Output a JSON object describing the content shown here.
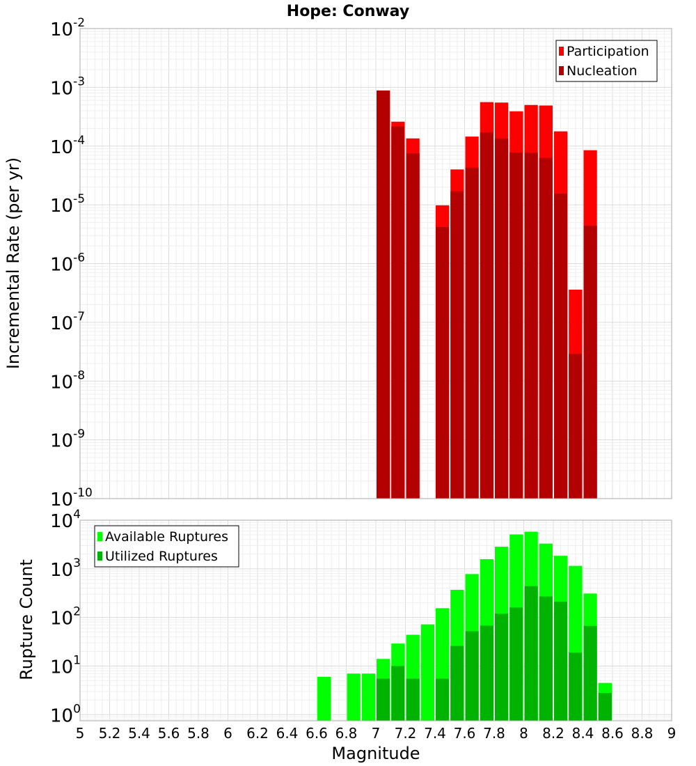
{
  "chart_data": [
    {
      "type": "bar",
      "title": "Hope: Conway",
      "ylabel": "Incremental Rate (per yr)",
      "xlabel": "",
      "xlim": [
        5,
        9
      ],
      "ylim": [
        1e-10,
        0.01
      ],
      "yscale": "log",
      "grid": true,
      "legend_position": "top-right",
      "yticks": [
        {
          "base": "10",
          "exp": "-10"
        },
        {
          "base": "10",
          "exp": "-9"
        },
        {
          "base": "10",
          "exp": "-8"
        },
        {
          "base": "10",
          "exp": "-7"
        },
        {
          "base": "10",
          "exp": "-6"
        },
        {
          "base": "10",
          "exp": "-5"
        },
        {
          "base": "10",
          "exp": "-4"
        },
        {
          "base": "10",
          "exp": "-3"
        },
        {
          "base": "10",
          "exp": "-2"
        }
      ],
      "x": [
        7.05,
        7.15,
        7.25,
        7.45,
        7.55,
        7.65,
        7.75,
        7.85,
        7.95,
        8.05,
        8.15,
        8.25,
        8.35,
        8.45
      ],
      "series": [
        {
          "name": "Participation",
          "color": "#ff0000",
          "values": [
            0.00088,
            0.00026,
            0.000135,
            9.8e-06,
            4e-05,
            0.000145,
            0.00056,
            0.00055,
            0.00039,
            0.0005,
            0.00049,
            0.000178,
            3.6e-07,
            8.5e-05
          ]
        },
        {
          "name": "Nucleation",
          "color": "#b30000",
          "values": [
            0.00088,
            0.000215,
            7.5e-05,
            4.2e-06,
            1.7e-05,
            4.3e-05,
            0.00017,
            0.000135,
            7.8e-05,
            7.7e-05,
            6.3e-05,
            1.55e-05,
            2.9e-08,
            4.4e-06
          ]
        }
      ]
    },
    {
      "type": "bar",
      "title": "",
      "ylabel": "Rupture Count",
      "xlabel": "Magnitude",
      "xlim": [
        5,
        9
      ],
      "ylim": [
        0.75,
        10000
      ],
      "yscale": "log",
      "grid": true,
      "legend_position": "top-left",
      "xticks": [
        "5",
        "5.2",
        "5.4",
        "5.6",
        "5.8",
        "6",
        "6.2",
        "6.4",
        "6.6",
        "6.8",
        "7",
        "7.2",
        "7.4",
        "7.6",
        "7.8",
        "8",
        "8.2",
        "8.4",
        "8.6",
        "8.8",
        "9"
      ],
      "yticks": [
        {
          "base": "10",
          "exp": "0"
        },
        {
          "base": "10",
          "exp": "1"
        },
        {
          "base": "10",
          "exp": "2"
        },
        {
          "base": "10",
          "exp": "3"
        },
        {
          "base": "10",
          "exp": "4"
        }
      ],
      "x": [
        6.65,
        6.85,
        6.95,
        7.05,
        7.15,
        7.25,
        7.35,
        7.45,
        7.55,
        7.65,
        7.75,
        7.85,
        7.95,
        8.05,
        8.15,
        8.25,
        8.35,
        8.45,
        8.55
      ],
      "series": [
        {
          "name": "Available Ruptures",
          "color": "#00ff00",
          "values": [
            6,
            7,
            7,
            14,
            29,
            44,
            72,
            155,
            370,
            780,
            1580,
            2850,
            5100,
            5800,
            3300,
            1850,
            1150,
            310,
            4.5
          ]
        },
        {
          "name": "Utilized Ruptures",
          "color": "#00b300",
          "values": [
            null,
            null,
            null,
            5.5,
            10,
            5.5,
            null,
            5.5,
            26,
            52,
            68,
            120,
            160,
            440,
            270,
            210,
            19,
            67,
            2.8
          ]
        }
      ]
    }
  ]
}
